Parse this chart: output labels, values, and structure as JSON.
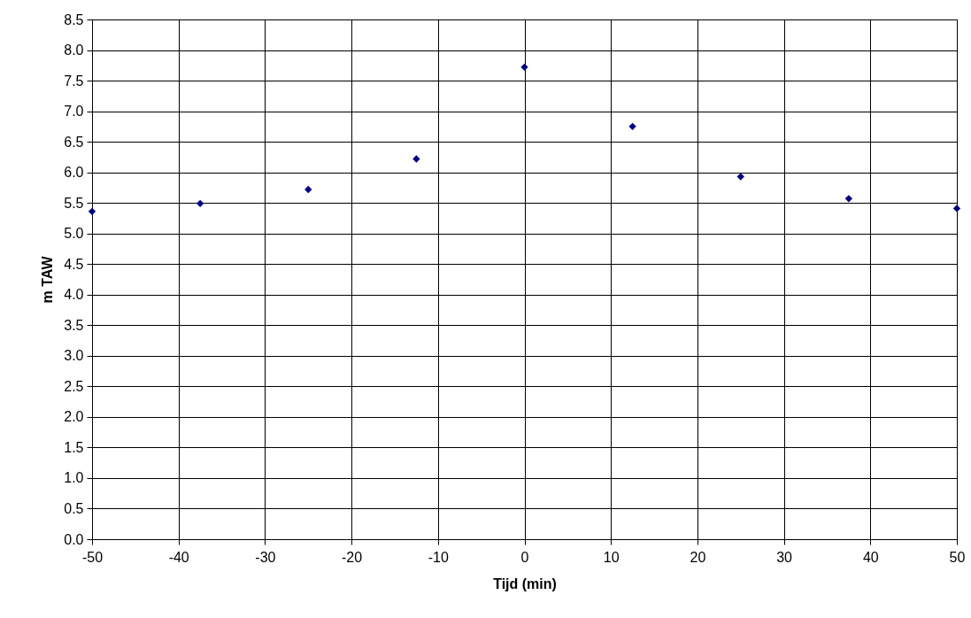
{
  "chart_data": {
    "type": "scatter",
    "xlabel": "Tijd (min)",
    "ylabel": "m TAW",
    "x": [
      -50,
      -37.5,
      -25,
      -12.5,
      0,
      12.5,
      25,
      37.5,
      50
    ],
    "series": [
      {
        "color": "#000080",
        "values": [
          5.36,
          5.49,
          5.72,
          6.22,
          7.72,
          6.75,
          5.93,
          5.57,
          5.41
        ]
      }
    ],
    "xlim": [
      -50,
      50
    ],
    "xticks": [
      -50,
      -40,
      -30,
      -20,
      -10,
      0,
      10,
      20,
      30,
      40,
      50
    ],
    "ylim": [
      0,
      8.5
    ],
    "yticks": [
      {
        "value": 0,
        "label": "0.0"
      },
      {
        "value": 0.5,
        "label": "0.5"
      },
      {
        "value": 1,
        "label": "1.0"
      },
      {
        "value": 1.5,
        "label": "1.5"
      },
      {
        "value": 2,
        "label": "2.0"
      },
      {
        "value": 2.5,
        "label": "2.5"
      },
      {
        "value": 3,
        "label": "3.0"
      },
      {
        "value": 3.5,
        "label": "3.5"
      },
      {
        "value": 4,
        "label": "4.0"
      },
      {
        "value": 4.5,
        "label": "4.5"
      },
      {
        "value": 5,
        "label": "5.0"
      },
      {
        "value": 5.5,
        "label": "5.5"
      },
      {
        "value": 6,
        "label": "6.0"
      },
      {
        "value": 6.5,
        "label": "6.5"
      },
      {
        "value": 7,
        "label": "7.0"
      },
      {
        "value": 7.5,
        "label": "7.5"
      },
      {
        "value": 8,
        "label": "8.0"
      },
      {
        "value": 8.5,
        "label": "8.5"
      }
    ],
    "grid": true,
    "marker": "diamond"
  }
}
